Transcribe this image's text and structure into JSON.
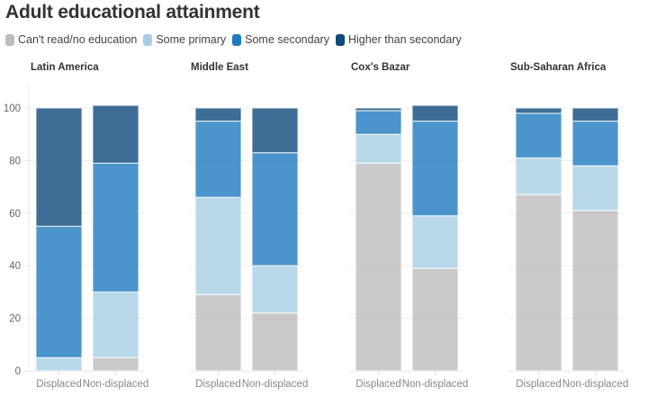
{
  "chart_data": {
    "type": "bar",
    "stacked": true,
    "title": "Adult educational attainment",
    "xlabel": "",
    "ylabel": "",
    "ylim": [
      0,
      110
    ],
    "yticks": [
      0,
      20,
      40,
      60,
      80,
      100
    ],
    "grid": true,
    "legend_position": "top-left",
    "categories": [
      "Displaced",
      "Non-displaced"
    ],
    "series_order": [
      "Can't read/no education",
      "Some primary",
      "Some secondary",
      "Higher than secondary"
    ],
    "series_colors": {
      "Can't read/no education": "#bdbdbd",
      "Some primary": "#a8cfe5",
      "Some secondary": "#1f7bbf",
      "Higher than secondary": "#0e4a7a"
    },
    "panels": [
      {
        "title": "Latin America",
        "series": [
          {
            "name": "Can't read/no education",
            "values": [
              0,
              5
            ]
          },
          {
            "name": "Some primary",
            "values": [
              5,
              25
            ]
          },
          {
            "name": "Some secondary",
            "values": [
              50,
              49
            ]
          },
          {
            "name": "Higher than secondary",
            "values": [
              45,
              22
            ]
          }
        ]
      },
      {
        "title": "Middle East",
        "series": [
          {
            "name": "Can't read/no education",
            "values": [
              29,
              22
            ]
          },
          {
            "name": "Some primary",
            "values": [
              37,
              18
            ]
          },
          {
            "name": "Some secondary",
            "values": [
              29,
              43
            ]
          },
          {
            "name": "Higher than secondary",
            "values": [
              5,
              17
            ]
          }
        ]
      },
      {
        "title": "Cox's Bazar",
        "series": [
          {
            "name": "Can't read/no education",
            "values": [
              79,
              39
            ]
          },
          {
            "name": "Some primary",
            "values": [
              11,
              20
            ]
          },
          {
            "name": "Some secondary",
            "values": [
              9,
              36
            ]
          },
          {
            "name": "Higher than secondary",
            "values": [
              1,
              6
            ]
          }
        ]
      },
      {
        "title": "Sub-Saharan Africa",
        "series": [
          {
            "name": "Can't read/no education",
            "values": [
              67,
              61
            ]
          },
          {
            "name": "Some primary",
            "values": [
              14,
              17
            ]
          },
          {
            "name": "Some secondary",
            "values": [
              17,
              17
            ]
          },
          {
            "name": "Higher than secondary",
            "values": [
              2,
              5
            ]
          }
        ]
      }
    ]
  },
  "legend": {
    "items": [
      {
        "label": "Can't read/no education",
        "color": "#bdbdbd"
      },
      {
        "label": "Some primary",
        "color": "#a8cfe5"
      },
      {
        "label": "Some secondary",
        "color": "#1f7bbf"
      },
      {
        "label": "Higher than secondary",
        "color": "#0e4a7a"
      }
    ]
  }
}
